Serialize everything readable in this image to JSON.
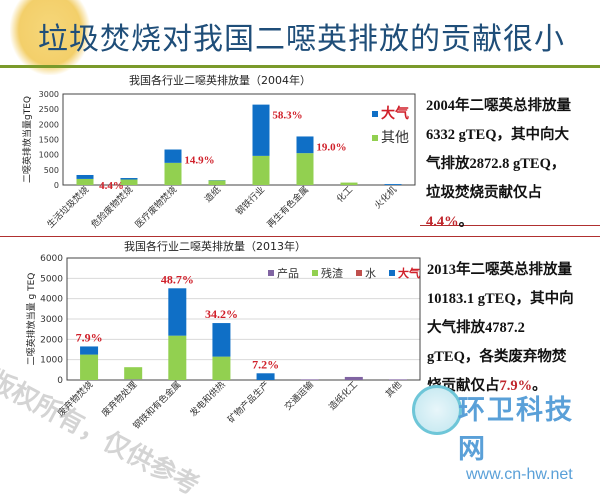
{
  "slide": {
    "title": "垃圾焚烧对我国二噁英排放的贡献很小",
    "watermark": "版权所有，仅供参考",
    "logo": {
      "name": "环卫科技网",
      "url": "www.cn-hw.net"
    },
    "note_2004": {
      "l1": "2004年二噁英总排放量",
      "l2": "6332 gTEQ，其中向大",
      "l3": "气排放2872.8 gTEQ，",
      "l4": "垃圾焚烧贡献仅占",
      "highlight": "4.4%",
      "end": "。"
    },
    "note_2013": {
      "l1": "2013年二噁英总排放量",
      "l2": "10183.1 gTEQ，其中向",
      "l3": "大气排放4787.2",
      "l4": "gTEQ，各类废弃物焚",
      "l5": "烧贡献仅占",
      "highlight": "7.9%",
      "end": "。"
    }
  },
  "chart_data": [
    {
      "type": "bar",
      "stacked": true,
      "title": "我国各行业二噁英排放量（2004年）",
      "ylabel": "二噁英排放当量gTEQ",
      "ylim": [
        0,
        3000
      ],
      "yticks": [
        0,
        500,
        1000,
        1500,
        2000,
        2500,
        3000
      ],
      "categories": [
        "生活垃圾焚烧",
        "危险废物焚烧",
        "医疗废物焚烧",
        "造纸",
        "钢铁行业",
        "再生有色金属",
        "化工",
        "火化机"
      ],
      "series": [
        {
          "name": "其他",
          "color": "#92d050",
          "values": [
            200,
            180,
            730,
            150,
            960,
            1050,
            80,
            0
          ]
        },
        {
          "name": "大气",
          "color": "#0f6fc6",
          "values": [
            130,
            50,
            440,
            10,
            1690,
            550,
            0,
            30
          ]
        }
      ],
      "annotations": [
        {
          "category": "生活垃圾焚烧",
          "text": "4.4%"
        },
        {
          "category": "医疗废物焚烧",
          "text": "14.9%"
        },
        {
          "category": "钢铁行业",
          "text": "58.3%"
        },
        {
          "category": "再生有色金属",
          "text": "19.0%"
        }
      ],
      "legend": "right",
      "grid": false
    },
    {
      "type": "bar",
      "stacked": true,
      "title": "我国各行业二噁英排放量（2013年）",
      "ylabel": "二噁英排放当量 g TEQ",
      "ylim": [
        0,
        6000
      ],
      "yticks": [
        0,
        1000,
        2000,
        3000,
        4000,
        5000,
        6000
      ],
      "categories": [
        "废弃物焚烧",
        "废弃物处理",
        "钢铁和有色金属",
        "发电和供热",
        "矿物产品生产",
        "交通运输",
        "造纸化工",
        "其他"
      ],
      "series": [
        {
          "name": "产品",
          "color": "#8064a2",
          "values": [
            0,
            30,
            0,
            0,
            0,
            30,
            150,
            30
          ]
        },
        {
          "name": "残渣",
          "color": "#92d050",
          "values": [
            1250,
            600,
            2180,
            1150,
            0,
            0,
            0,
            0
          ]
        },
        {
          "name": "水",
          "color": "#c0504d",
          "values": [
            0,
            0,
            0,
            0,
            0,
            0,
            0,
            0
          ]
        },
        {
          "name": "大气",
          "color": "#0f6fc6",
          "values": [
            400,
            0,
            2330,
            1650,
            330,
            0,
            0,
            0
          ]
        }
      ],
      "annotations": [
        {
          "category": "废弃物焚烧",
          "text": "7.9%"
        },
        {
          "category": "钢铁和有色金属",
          "text": "48.7%"
        },
        {
          "category": "发电和供热",
          "text": "34.2%"
        },
        {
          "category": "矿物产品生产",
          "text": "7.2%"
        }
      ],
      "legend": "top-right",
      "grid": true
    }
  ]
}
